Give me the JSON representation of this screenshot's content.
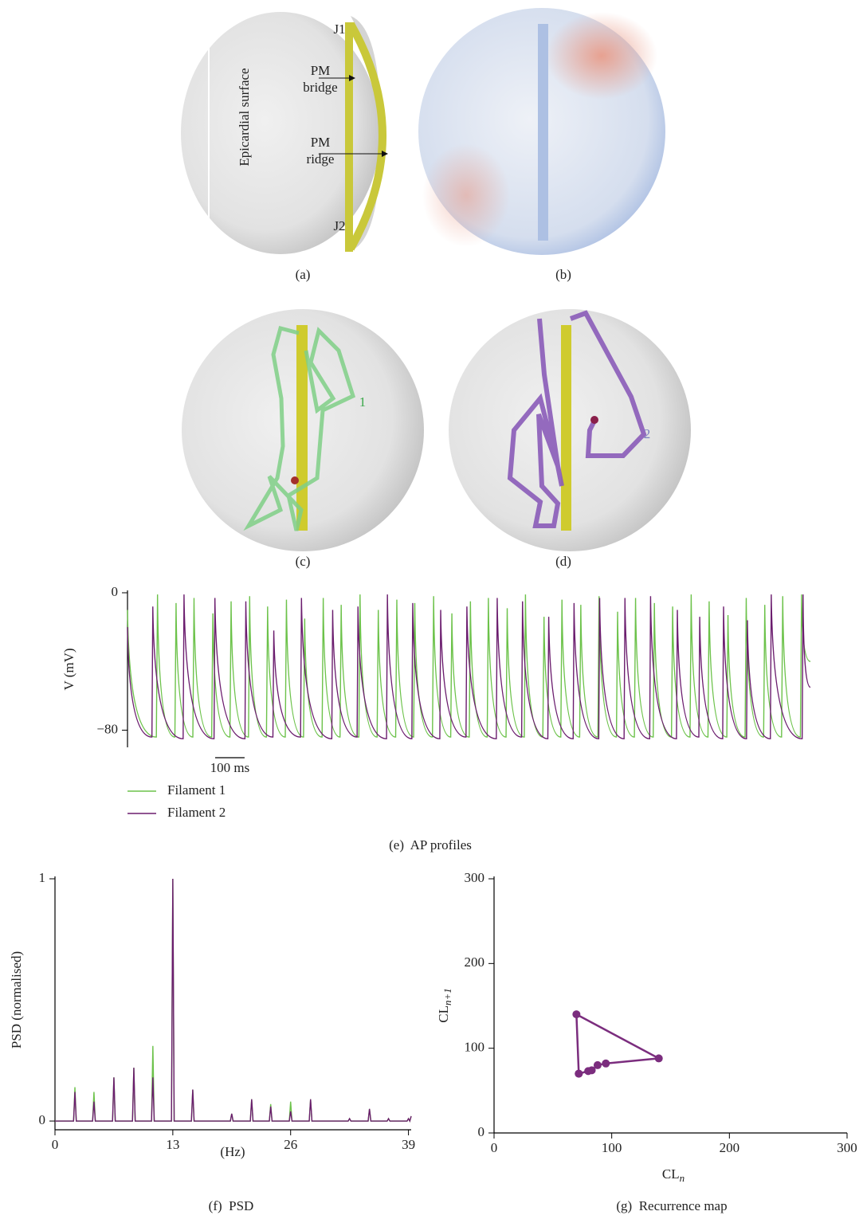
{
  "panel_a": {
    "caption": "(a)",
    "j1": "J1",
    "j2": "J2",
    "bridge": [
      "PM",
      "bridge"
    ],
    "ridge": [
      "PM",
      "ridge"
    ],
    "surface": "Epicardial surface"
  },
  "panel_b": {
    "caption": "(b)"
  },
  "panel_c": {
    "caption": "(c)",
    "filament": "1"
  },
  "panel_d": {
    "caption": "(d)",
    "filament": "2"
  },
  "chart_data": [
    {
      "type": "line",
      "caption": "(e)  AP profiles",
      "ylabel": "V (mV)",
      "xlim": [
        0,
        2320
      ],
      "ylim": [
        -90,
        0
      ],
      "yticks": [
        0,
        {
          "value": -80,
          "label": "−80"
        }
      ],
      "scalebar": {
        "value": 100,
        "label": "100 ms"
      },
      "series": [
        {
          "name": "Filament 1",
          "color": "#6cc24a",
          "x": [
            0,
            98,
            102,
            161,
            165,
            222,
            226,
            286,
            290,
            348,
            352,
            411,
            415,
            472,
            476,
            536,
            540,
            598,
            602,
            661,
            665,
            722,
            726,
            786,
            790,
            848,
            852,
            911,
            915,
            972,
            976,
            1036,
            1040,
            1098,
            1102,
            1161,
            1165,
            1222,
            1226,
            1286,
            1290,
            1348,
            1352,
            1411,
            1415,
            1472,
            1476,
            1536,
            1540,
            1598,
            1602,
            1661,
            1665,
            1722,
            1726,
            1786,
            1790,
            1848,
            1852,
            1911,
            1915,
            1972,
            1976,
            2036,
            2040,
            2098,
            2102,
            2161,
            2165,
            2222,
            2226,
            2286,
            2290,
            2320
          ],
          "values": [
            -10,
            -84,
            -1,
            -84,
            -6,
            -84,
            -3,
            -84,
            -12,
            -84,
            -5,
            -84,
            -2,
            -84,
            -8,
            -84,
            -4,
            -84,
            -15,
            -84,
            -3,
            -84,
            -7,
            -84,
            -1,
            -84,
            -10,
            -84,
            -4,
            -84,
            -6,
            -84,
            -2,
            -84,
            -12,
            -84,
            -5,
            -84,
            -3,
            -84,
            -9,
            -84,
            -1,
            -84,
            -14,
            -84,
            -4,
            -84,
            -7,
            -84,
            -2,
            -84,
            -11,
            -84,
            -3,
            -84,
            -6,
            -84,
            -8,
            -84,
            -1,
            -84,
            -5,
            -84,
            -13,
            -84,
            -3,
            -84,
            -7,
            -84,
            -2,
            -84,
            -1,
            -40
          ]
        },
        {
          "name": "Filament 2",
          "color": "#6b1d6e",
          "x": [
            0,
            83,
            86,
            189,
            192,
            294,
            297,
            399,
            402,
            494,
            497,
            588,
            591,
            694,
            697,
            780,
            783,
            880,
            883,
            966,
            969,
            1061,
            1064,
            1150,
            1153,
            1253,
            1256,
            1339,
            1342,
            1428,
            1431,
            1514,
            1517,
            1601,
            1604,
            1687,
            1690,
            1774,
            1777,
            1865,
            1868,
            1941,
            1944,
            2022,
            2025,
            2103,
            2106,
            2184,
            2187,
            2292,
            2295,
            2320
          ],
          "values": [
            -20,
            -84,
            -8,
            -85,
            -1,
            -85,
            -3,
            -85,
            -5,
            -84,
            -22,
            -84,
            -3,
            -85,
            -10,
            -84,
            -8,
            -85,
            -1,
            -85,
            -6,
            -85,
            -10,
            -84,
            -8,
            -85,
            -3,
            -84,
            -5,
            -85,
            -14,
            -85,
            -6,
            -85,
            -3,
            -85,
            -3,
            -85,
            -2,
            -85,
            -10,
            -84,
            -14,
            -85,
            -8,
            -85,
            -16,
            -85,
            -1,
            -85,
            -1,
            -55
          ]
        }
      ]
    },
    {
      "type": "line",
      "caption": "(f)  PSD",
      "ylabel": "PSD (normalised)",
      "xlabel": "(Hz)",
      "xlim": [
        0,
        39.3
      ],
      "ylim": [
        -0.036,
        1
      ],
      "xticks": [
        0,
        13,
        26,
        39
      ],
      "yticks": [
        0,
        1
      ],
      "x": [
        0,
        2.05,
        2.2,
        2.35,
        4.15,
        4.3,
        4.45,
        6.35,
        6.5,
        6.65,
        8.55,
        8.7,
        8.85,
        10.65,
        10.8,
        10.95,
        12.85,
        13,
        13.15,
        15.05,
        15.2,
        15.35,
        17.15,
        17.3,
        17.45,
        19.35,
        19.5,
        19.65,
        21.55,
        21.7,
        21.85,
        23.65,
        23.8,
        23.95,
        25.85,
        26,
        26.15,
        28.05,
        28.2,
        28.35,
        30.15,
        30.3,
        30.45,
        32.35,
        32.5,
        32.65,
        34.55,
        34.7,
        34.85,
        36.65,
        36.8,
        36.95,
        38.85,
        39,
        39.15,
        39.3
      ],
      "series": [
        {
          "color": "#6cc24a",
          "values": [
            0,
            0,
            0.14,
            0,
            0,
            0.12,
            0,
            0,
            0.18,
            0,
            0,
            0.22,
            0,
            0,
            0.31,
            0,
            0,
            1,
            0,
            0,
            0.13,
            0,
            0,
            0,
            0,
            0,
            0.03,
            0,
            0,
            0.09,
            0,
            0,
            0.07,
            0,
            0,
            0.08,
            0,
            0,
            0.09,
            0,
            0,
            0,
            0,
            0,
            0.01,
            0,
            0,
            0.05,
            0,
            0,
            0.01,
            0,
            0,
            0.01,
            0,
            0.02
          ]
        },
        {
          "color": "#6b1d6e",
          "values": [
            0,
            0,
            0.12,
            0,
            0,
            0.08,
            0,
            0,
            0.18,
            0,
            0,
            0.22,
            0,
            0,
            0.18,
            0,
            0,
            1,
            0,
            0,
            0.13,
            0,
            0,
            0,
            0,
            0,
            0.03,
            0,
            0,
            0.09,
            0,
            0,
            0.06,
            0,
            0,
            0.04,
            0,
            0,
            0.09,
            0,
            0,
            0,
            0,
            0,
            0.01,
            0,
            0,
            0.05,
            0,
            0,
            0.01,
            0,
            0,
            0.01,
            0,
            0.02
          ]
        }
      ]
    },
    {
      "type": "scatter",
      "caption": "(g)  Recurrence map",
      "connect": true,
      "color": "#7b2d7e",
      "xlabel": "CL",
      "xlabel_sub": "n",
      "ylabel": "CL",
      "ylabel_sub": "n+1",
      "xlim": [
        0,
        300
      ],
      "ylim": [
        0,
        300
      ],
      "xticks": [
        0,
        100,
        200,
        300
      ],
      "yticks": [
        0,
        100,
        200,
        300
      ],
      "x": [
        72,
        80,
        83,
        88,
        95,
        140,
        70,
        72
      ],
      "y": [
        70,
        73,
        74,
        80,
        82,
        88,
        140,
        70
      ]
    }
  ]
}
